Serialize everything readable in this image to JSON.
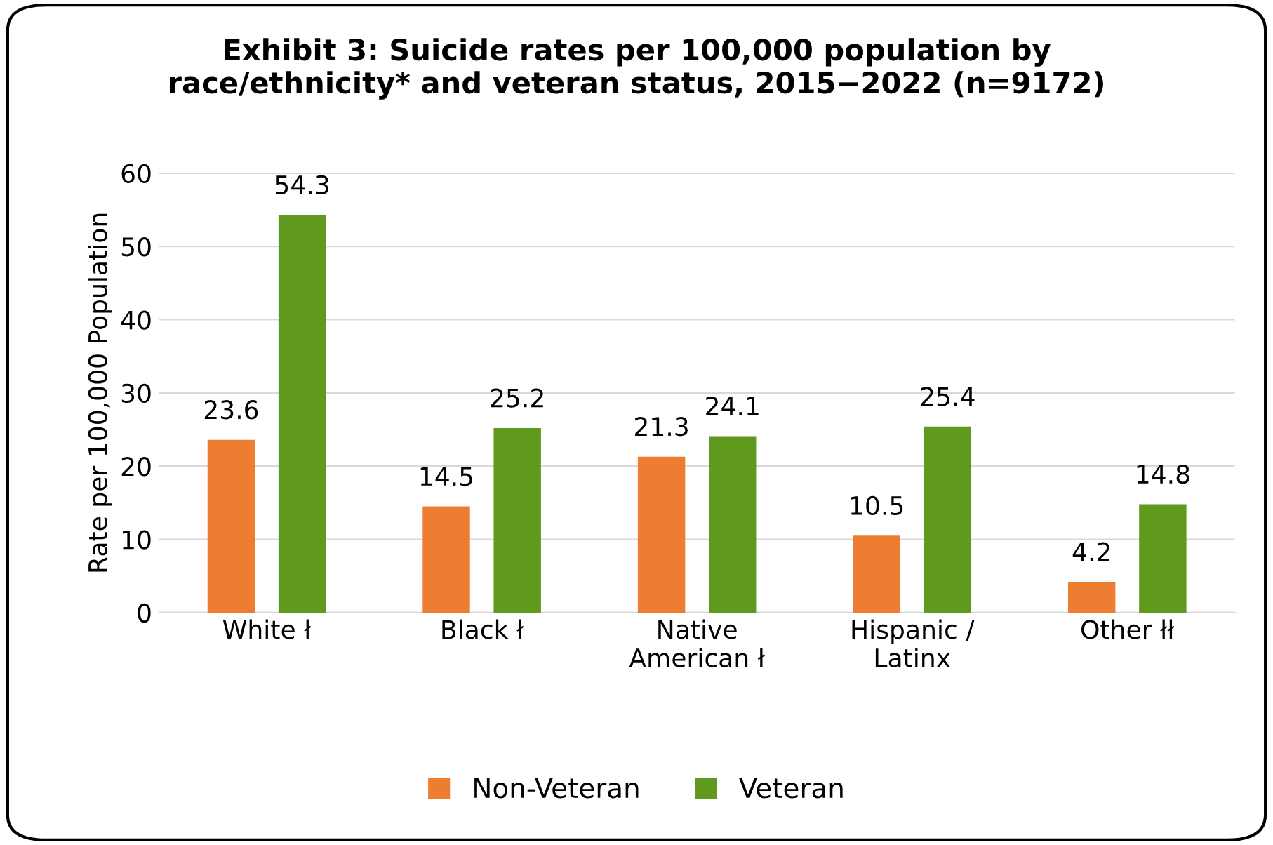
{
  "chart_data": {
    "type": "bar",
    "title": "Exhibit 3: Suicide rates per 100,000 population by\nrace/ethnicity* and veteran status, 2015−2022 (n=9172)",
    "ylabel": "Rate per 100,000 Population",
    "categories": [
      "White ł",
      "Black ł",
      "Native\nAmerican ł",
      "Hispanic /\nLatinx",
      "Other łł"
    ],
    "series": [
      {
        "name": "Non-Veteran",
        "color": "#ed7d31",
        "values": [
          23.6,
          14.5,
          21.3,
          10.5,
          4.2
        ]
      },
      {
        "name": "Veteran",
        "color": "#5f9a1e",
        "values": [
          54.3,
          25.2,
          24.1,
          25.4,
          14.8
        ]
      }
    ],
    "ylim": [
      0,
      60
    ],
    "yticks": [
      0,
      10,
      20,
      30,
      40,
      50,
      60
    ],
    "grid": "y",
    "legend": "bottom",
    "data_labels": true
  }
}
